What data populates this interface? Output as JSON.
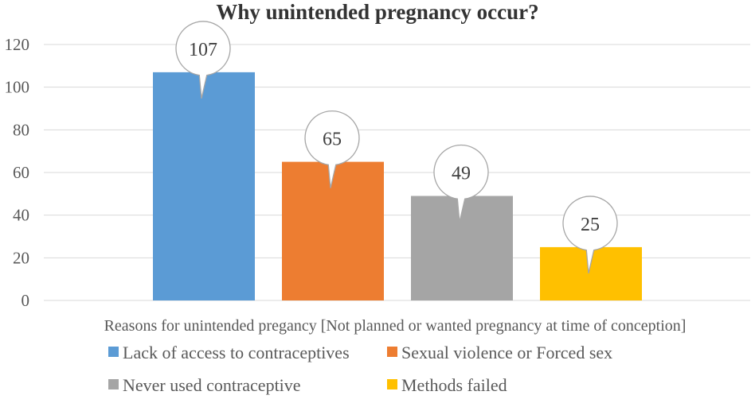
{
  "chart_data": {
    "type": "bar",
    "title": "Why unintended pregnancy occur?",
    "xlabel": "Reasons for unintended pregancy [Not planned or wanted pregnancy at time of conception]",
    "ylabel": "",
    "ylim": [
      0,
      120
    ],
    "yticks": [
      0,
      20,
      40,
      60,
      80,
      100,
      120
    ],
    "grid": true,
    "legend_position": "bottom",
    "series": [
      {
        "name": "Lack of access to contraceptives",
        "value": 107,
        "color": "#5b9bd5"
      },
      {
        "name": "Sexual violence or Forced sex",
        "value": 65,
        "color": "#ed7d31"
      },
      {
        "name": "Never used contraceptive",
        "value": 49,
        "color": "#a5a5a5"
      },
      {
        "name": "Methods failed",
        "value": 25,
        "color": "#ffc000"
      }
    ]
  }
}
